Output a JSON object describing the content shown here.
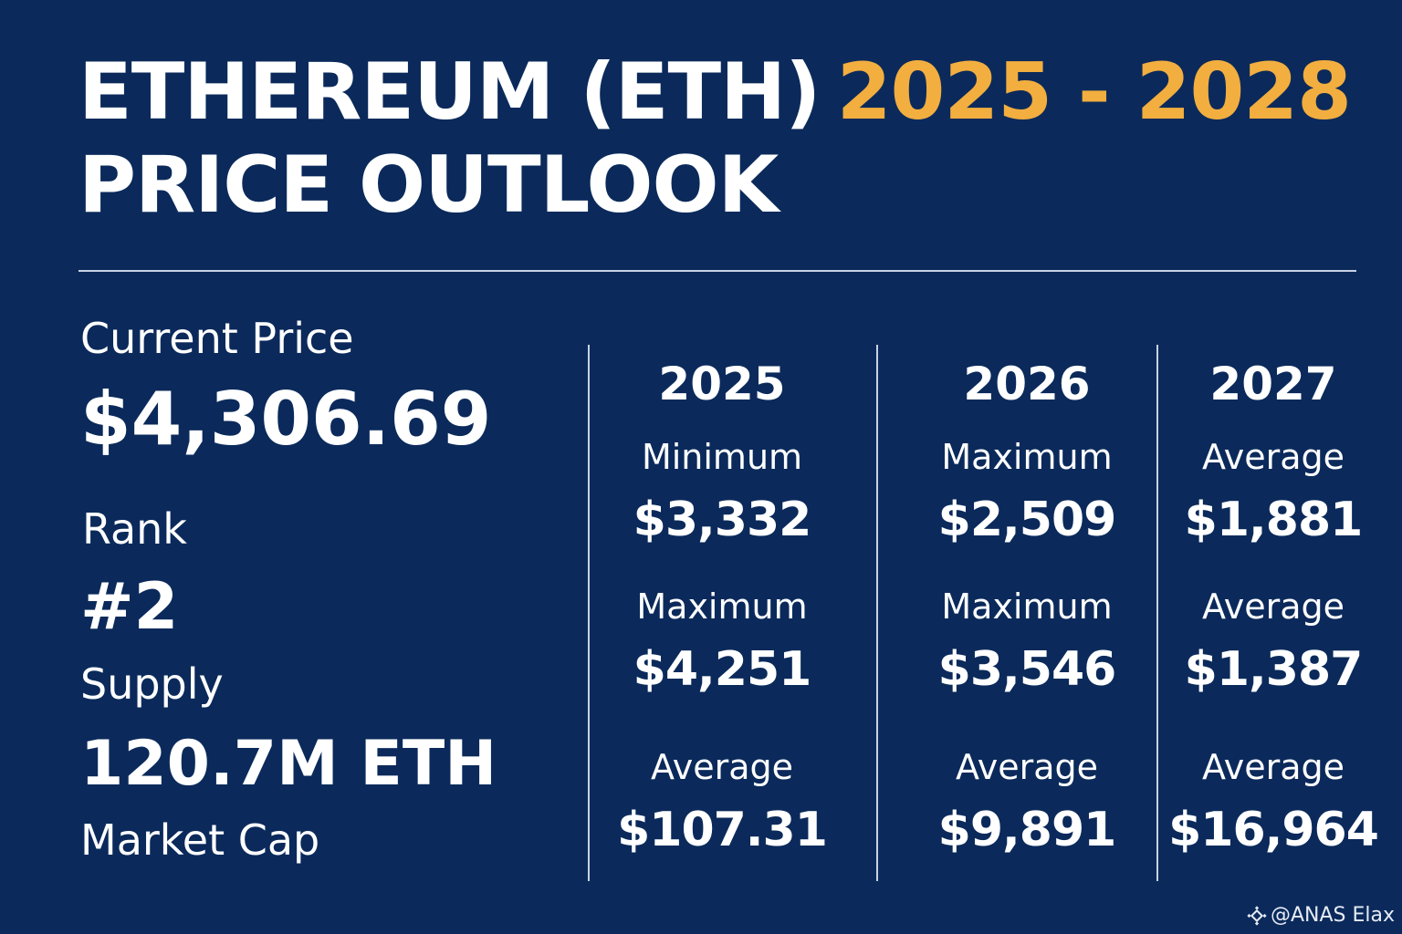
{
  "title": {
    "line1": "ETHEREUM (ETH)",
    "line2": "PRICE OUTLOOK",
    "years": "2025 - 2028",
    "years_color": "#f2ae3f"
  },
  "background_color": "#0b2a5b",
  "stats": {
    "current_price_label": "Current Price",
    "current_price_value": "$4,306.69",
    "rank_label": "Rank",
    "rank_value": "#2",
    "supply_label": "Supply",
    "supply_value": "120.7M ETH",
    "market_cap_label": "Market Cap"
  },
  "columns": [
    {
      "year": "2025",
      "rows": [
        {
          "label": "Minimum",
          "value": "$3,332"
        },
        {
          "label": "Maximum",
          "value": "$4,251"
        },
        {
          "label": "Average",
          "value": "$107.31"
        }
      ]
    },
    {
      "year": "2026",
      "rows": [
        {
          "label": "Maximum",
          "value": "$2,509"
        },
        {
          "label": "Maximum",
          "value": "$3,546"
        },
        {
          "label": "Average",
          "value": "$9,891"
        }
      ]
    },
    {
      "year": "2027",
      "rows": [
        {
          "label": "Average",
          "value": "$1,881"
        },
        {
          "label": "Average",
          "value": "$1,387"
        },
        {
          "label": "Average",
          "value": "$16,964"
        }
      ]
    }
  ],
  "watermark": {
    "icon": "binance-diamond-icon",
    "text": "@ANAS Elax"
  }
}
